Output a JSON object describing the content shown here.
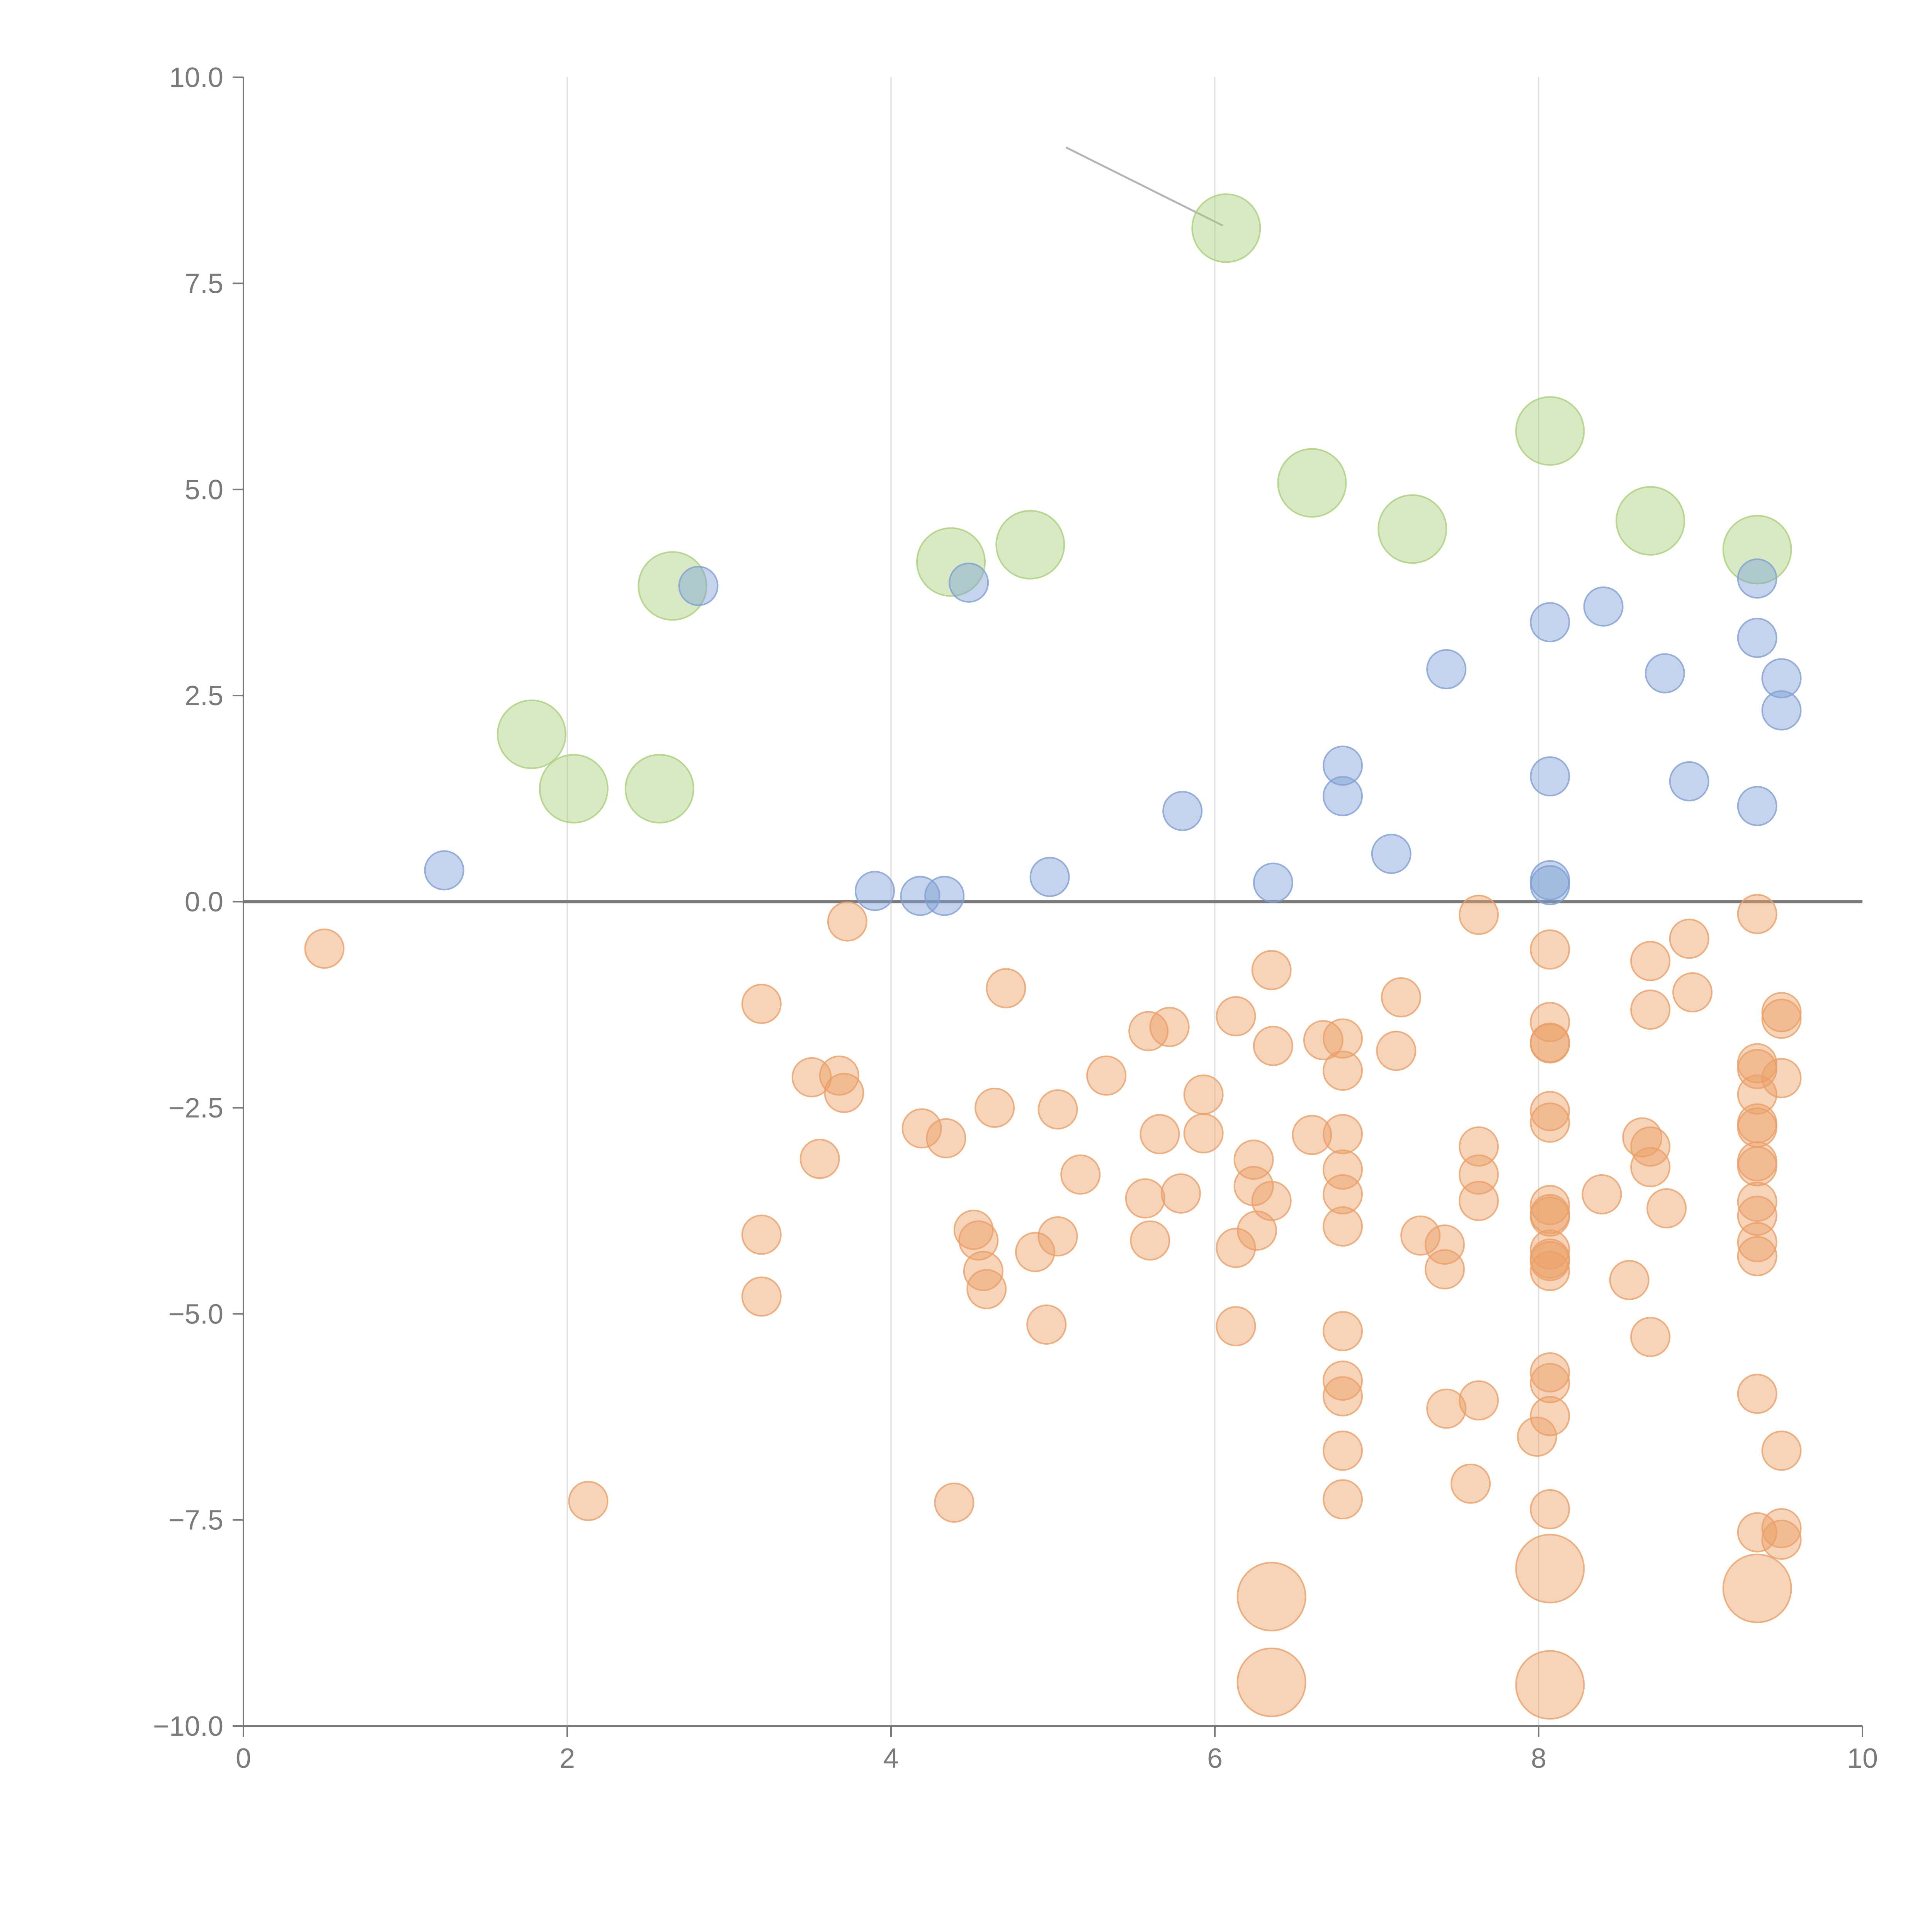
{
  "chart_data": {
    "type": "scatter",
    "title": "",
    "xlabel": "",
    "ylabel": "",
    "xlim": [
      0,
      10
    ],
    "ylim": [
      -10,
      10
    ],
    "x_ticks": [
      "0",
      "2",
      "4",
      "6",
      "8",
      "10"
    ],
    "y_ticks": [
      "10.0",
      "7.5",
      "5.0",
      "2.5",
      "0.0",
      "−2.5",
      "−5.0",
      "−7.5",
      "−10.0"
    ],
    "grid": "vertical",
    "zero_line": true,
    "colors": {
      "green": "#a9cf7a",
      "blue": "#7f9fd4",
      "orange": "#eb9f66"
    },
    "series": [
      {
        "color_key": "green",
        "size": "large",
        "points": [
          [
            1.78,
            2.03
          ],
          [
            2.04,
            1.37
          ],
          [
            2.57,
            1.37
          ],
          [
            2.65,
            3.83
          ],
          [
            4.37,
            4.12
          ],
          [
            4.86,
            4.33
          ],
          [
            6.07,
            8.17
          ],
          [
            6.6,
            5.08
          ],
          [
            7.22,
            4.52
          ],
          [
            8.07,
            5.71
          ],
          [
            8.69,
            4.62
          ],
          [
            9.35,
            4.27
          ]
        ]
      },
      {
        "color_key": "blue",
        "size": "medium",
        "points": [
          [
            1.24,
            0.38
          ],
          [
            2.81,
            3.83
          ],
          [
            3.9,
            0.13
          ],
          [
            4.18,
            0.07
          ],
          [
            4.33,
            0.07
          ],
          [
            4.48,
            3.87
          ],
          [
            4.98,
            0.3
          ],
          [
            5.8,
            1.1
          ],
          [
            6.36,
            0.23
          ],
          [
            6.79,
            1.65
          ],
          [
            6.79,
            1.28
          ],
          [
            7.09,
            0.58
          ],
          [
            7.43,
            2.82
          ],
          [
            8.07,
            3.39
          ],
          [
            8.07,
            1.52
          ],
          [
            8.07,
            0.26
          ],
          [
            8.07,
            0.2
          ],
          [
            8.4,
            3.58
          ],
          [
            8.78,
            2.77
          ],
          [
            8.93,
            1.46
          ],
          [
            9.35,
            3.92
          ],
          [
            9.35,
            3.2
          ],
          [
            9.35,
            1.16
          ],
          [
            9.5,
            2.71
          ],
          [
            9.5,
            2.32
          ]
        ]
      },
      {
        "color_key": "orange",
        "size": "medium",
        "points": [
          [
            0.5,
            -0.57
          ],
          [
            2.13,
            -7.27
          ],
          [
            3.2,
            -1.24
          ],
          [
            3.2,
            -4.04
          ],
          [
            3.2,
            -4.79
          ],
          [
            3.51,
            -2.13
          ],
          [
            3.56,
            -3.12
          ],
          [
            3.68,
            -2.11
          ],
          [
            3.71,
            -2.32
          ],
          [
            3.73,
            -0.24
          ],
          [
            4.19,
            -2.75
          ],
          [
            4.34,
            -2.87
          ],
          [
            4.39,
            -7.29
          ],
          [
            4.51,
            -3.98
          ],
          [
            4.54,
            -4.11
          ],
          [
            4.57,
            -4.48
          ],
          [
            4.59,
            -4.7
          ],
          [
            4.64,
            -2.5
          ],
          [
            4.71,
            -1.05
          ],
          [
            4.89,
            -4.25
          ],
          [
            4.96,
            -5.13
          ],
          [
            5.03,
            -2.52
          ],
          [
            5.03,
            -4.06
          ],
          [
            5.17,
            -3.31
          ],
          [
            5.33,
            -2.11
          ],
          [
            5.57,
            -3.6
          ],
          [
            5.59,
            -1.57
          ],
          [
            5.6,
            -4.11
          ],
          [
            5.66,
            -2.82
          ],
          [
            5.72,
            -1.52
          ],
          [
            5.79,
            -3.54
          ],
          [
            5.93,
            -2.34
          ],
          [
            5.93,
            -2.81
          ],
          [
            6.13,
            -1.39
          ],
          [
            6.13,
            -4.2
          ],
          [
            6.13,
            -5.15
          ],
          [
            6.24,
            -3.13
          ],
          [
            6.24,
            -3.45
          ],
          [
            6.26,
            -3.99
          ],
          [
            6.35,
            -3.63
          ],
          [
            6.35,
            -0.83
          ],
          [
            6.36,
            -1.75
          ],
          [
            6.6,
            -2.83
          ],
          [
            6.67,
            -1.68
          ],
          [
            6.79,
            -1.66
          ],
          [
            6.79,
            -2.05
          ],
          [
            6.79,
            -2.82
          ],
          [
            6.79,
            -3.25
          ],
          [
            6.79,
            -3.55
          ],
          [
            6.79,
            -3.94
          ],
          [
            6.79,
            -5.21
          ],
          [
            6.79,
            -5.81
          ],
          [
            6.79,
            -6.0
          ],
          [
            6.79,
            -6.66
          ],
          [
            6.79,
            -7.25
          ],
          [
            7.12,
            -1.81
          ],
          [
            7.15,
            -1.16
          ],
          [
            7.27,
            -4.05
          ],
          [
            7.42,
            -4.16
          ],
          [
            7.42,
            -4.46
          ],
          [
            7.43,
            -6.15
          ],
          [
            7.58,
            -7.06
          ],
          [
            7.63,
            -0.16
          ],
          [
            7.63,
            -2.97
          ],
          [
            7.63,
            -3.31
          ],
          [
            7.63,
            -3.63
          ],
          [
            7.63,
            -6.05
          ],
          [
            7.99,
            -6.49
          ],
          [
            8.07,
            -0.58
          ],
          [
            8.07,
            -1.46
          ],
          [
            8.07,
            -1.71
          ],
          [
            8.07,
            -1.72
          ],
          [
            8.07,
            -2.54
          ],
          [
            8.07,
            -2.68
          ],
          [
            8.07,
            -3.68
          ],
          [
            8.07,
            -3.79
          ],
          [
            8.07,
            -3.82
          ],
          [
            8.07,
            -4.22
          ],
          [
            8.07,
            -4.33
          ],
          [
            8.07,
            -4.36
          ],
          [
            8.07,
            -4.48
          ],
          [
            8.07,
            -5.71
          ],
          [
            8.07,
            -5.84
          ],
          [
            8.07,
            -6.24
          ],
          [
            8.07,
            -7.37
          ],
          [
            8.39,
            -3.55
          ],
          [
            8.56,
            -4.59
          ],
          [
            8.64,
            -2.86
          ],
          [
            8.69,
            -2.97
          ],
          [
            8.69,
            -3.22
          ],
          [
            8.69,
            -0.72
          ],
          [
            8.69,
            -1.31
          ],
          [
            8.69,
            -5.28
          ],
          [
            8.79,
            -3.72
          ],
          [
            8.93,
            -0.45
          ],
          [
            8.95,
            -1.1
          ],
          [
            9.35,
            -0.15
          ],
          [
            9.35,
            -1.96
          ],
          [
            9.35,
            -2.03
          ],
          [
            9.35,
            -2.34
          ],
          [
            9.35,
            -2.69
          ],
          [
            9.35,
            -2.74
          ],
          [
            9.35,
            -3.15
          ],
          [
            9.35,
            -3.21
          ],
          [
            9.35,
            -3.64
          ],
          [
            9.35,
            -3.81
          ],
          [
            9.35,
            -4.13
          ],
          [
            9.35,
            -4.3
          ],
          [
            9.35,
            -5.97
          ],
          [
            9.35,
            -7.65
          ],
          [
            9.5,
            -1.34
          ],
          [
            9.5,
            -1.42
          ],
          [
            9.5,
            -2.14
          ],
          [
            9.5,
            -6.66
          ],
          [
            9.5,
            -7.6
          ],
          [
            9.5,
            -7.74
          ]
        ]
      },
      {
        "color_key": "orange",
        "size": "large",
        "points": [
          [
            6.35,
            -8.43
          ],
          [
            6.35,
            -9.47
          ],
          [
            8.07,
            -8.09
          ],
          [
            8.07,
            -9.5
          ],
          [
            9.35,
            -8.33
          ]
        ]
      }
    ],
    "annotation_lines": [
      {
        "from": [
          5.08,
          9.15
        ],
        "to": [
          6.05,
          8.2
        ]
      }
    ]
  }
}
